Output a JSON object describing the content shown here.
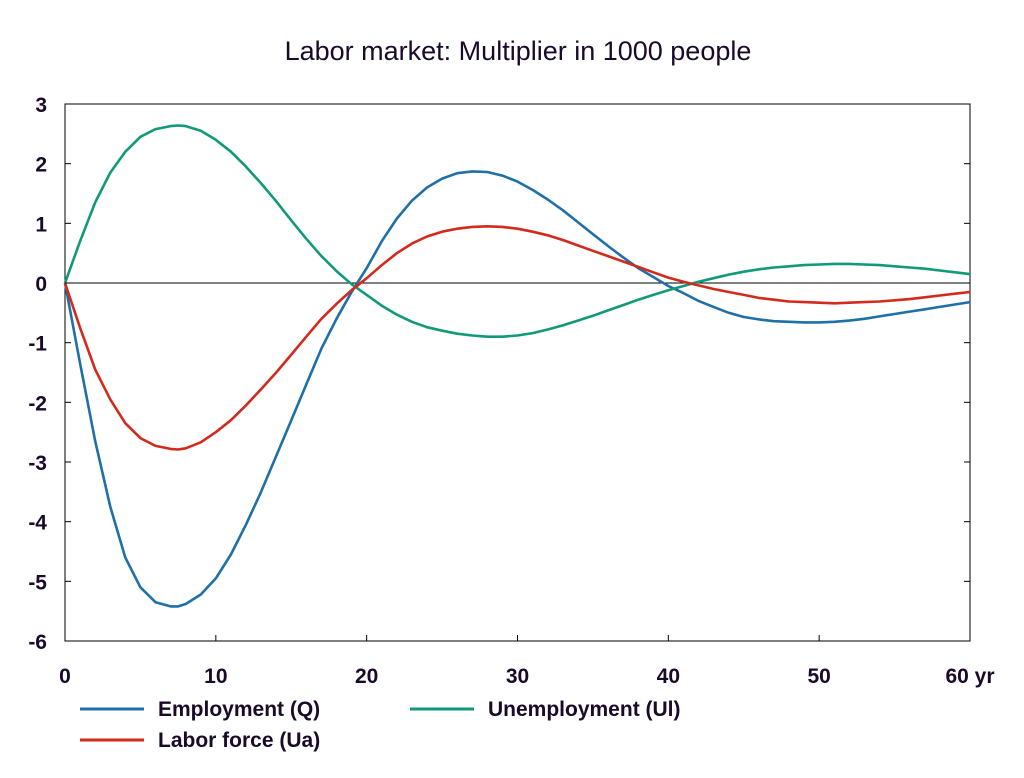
{
  "chart_data": {
    "type": "line",
    "title": "Labor market: Multiplier in 1000 people",
    "xlabel": "",
    "ylabel": "",
    "x_unit_label": "yr",
    "xlim": [
      0,
      60
    ],
    "ylim": [
      -6,
      3
    ],
    "xticks": [
      0,
      10,
      20,
      30,
      40,
      50,
      60
    ],
    "yticks": [
      3,
      2,
      1,
      0,
      -1,
      -2,
      -3,
      -4,
      -5,
      -6
    ],
    "grid": false,
    "zero_line": true,
    "legend_position": "bottom",
    "series": [
      {
        "name": "Employment (Q)",
        "color": "#1f6fa8",
        "x": [
          0,
          1,
          2,
          3,
          4,
          5,
          6,
          7,
          7.5,
          8,
          9,
          10,
          11,
          12,
          13,
          14,
          15,
          16,
          17,
          18,
          19,
          20,
          21,
          22,
          23,
          24,
          25,
          26,
          27,
          28,
          29,
          30,
          31,
          32,
          33,
          34,
          35,
          36,
          37,
          38,
          39,
          40,
          41,
          42,
          43,
          44,
          45,
          46,
          47,
          48,
          49,
          50,
          51,
          52,
          53,
          54,
          55,
          56,
          57,
          58,
          59,
          60
        ],
        "y": [
          0,
          -1.35,
          -2.65,
          -3.75,
          -4.6,
          -5.1,
          -5.35,
          -5.42,
          -5.42,
          -5.38,
          -5.22,
          -4.95,
          -4.55,
          -4.05,
          -3.5,
          -2.9,
          -2.3,
          -1.7,
          -1.1,
          -0.6,
          -0.15,
          0.25,
          0.7,
          1.08,
          1.38,
          1.6,
          1.75,
          1.84,
          1.87,
          1.86,
          1.8,
          1.7,
          1.56,
          1.4,
          1.22,
          1.02,
          0.82,
          0.62,
          0.43,
          0.25,
          0.1,
          -0.05,
          -0.17,
          -0.3,
          -0.4,
          -0.5,
          -0.57,
          -0.61,
          -0.64,
          -0.65,
          -0.66,
          -0.66,
          -0.65,
          -0.63,
          -0.6,
          -0.56,
          -0.52,
          -0.48,
          -0.44,
          -0.4,
          -0.36,
          -0.32
        ]
      },
      {
        "name": "Unemployment (Ul)",
        "color": "#12997a",
        "x": [
          0,
          1,
          2,
          3,
          4,
          5,
          6,
          7,
          7.5,
          8,
          9,
          10,
          11,
          12,
          13,
          14,
          15,
          16,
          17,
          18,
          19,
          20,
          21,
          22,
          23,
          24,
          25,
          26,
          27,
          28,
          29,
          30,
          31,
          32,
          33,
          34,
          35,
          36,
          37,
          38,
          39,
          40,
          41,
          42,
          43,
          44,
          45,
          46,
          47,
          48,
          49,
          50,
          51,
          52,
          53,
          54,
          55,
          56,
          57,
          58,
          59,
          60
        ],
        "y": [
          0,
          0.7,
          1.35,
          1.85,
          2.2,
          2.45,
          2.58,
          2.63,
          2.64,
          2.63,
          2.55,
          2.4,
          2.2,
          1.95,
          1.67,
          1.37,
          1.05,
          0.74,
          0.45,
          0.2,
          -0.02,
          -0.2,
          -0.38,
          -0.53,
          -0.65,
          -0.74,
          -0.8,
          -0.85,
          -0.88,
          -0.9,
          -0.9,
          -0.88,
          -0.84,
          -0.78,
          -0.71,
          -0.63,
          -0.55,
          -0.46,
          -0.37,
          -0.28,
          -0.2,
          -0.12,
          -0.05,
          0.02,
          0.08,
          0.14,
          0.19,
          0.23,
          0.26,
          0.28,
          0.3,
          0.31,
          0.32,
          0.32,
          0.31,
          0.3,
          0.28,
          0.26,
          0.24,
          0.21,
          0.18,
          0.15
        ]
      },
      {
        "name": "Labor force (Ua)",
        "color": "#d22b1e",
        "x": [
          0,
          1,
          2,
          3,
          4,
          5,
          6,
          7,
          7.5,
          8,
          9,
          10,
          11,
          12,
          13,
          14,
          15,
          16,
          17,
          18,
          19,
          20,
          21,
          22,
          23,
          24,
          25,
          26,
          27,
          28,
          29,
          30,
          31,
          32,
          33,
          34,
          35,
          36,
          37,
          38,
          39,
          40,
          41,
          42,
          43,
          44,
          45,
          46,
          47,
          48,
          49,
          50,
          51,
          52,
          53,
          54,
          55,
          56,
          57,
          58,
          59,
          60
        ],
        "y": [
          0,
          -0.75,
          -1.45,
          -1.95,
          -2.35,
          -2.6,
          -2.73,
          -2.78,
          -2.79,
          -2.77,
          -2.67,
          -2.5,
          -2.3,
          -2.05,
          -1.78,
          -1.5,
          -1.2,
          -0.9,
          -0.6,
          -0.35,
          -0.12,
          0.08,
          0.3,
          0.5,
          0.66,
          0.78,
          0.86,
          0.91,
          0.94,
          0.95,
          0.94,
          0.91,
          0.86,
          0.8,
          0.72,
          0.63,
          0.54,
          0.45,
          0.36,
          0.27,
          0.18,
          0.09,
          0.02,
          -0.04,
          -0.1,
          -0.15,
          -0.2,
          -0.25,
          -0.28,
          -0.31,
          -0.32,
          -0.33,
          -0.34,
          -0.33,
          -0.32,
          -0.31,
          -0.29,
          -0.27,
          -0.24,
          -0.21,
          -0.18,
          -0.15
        ]
      }
    ]
  }
}
